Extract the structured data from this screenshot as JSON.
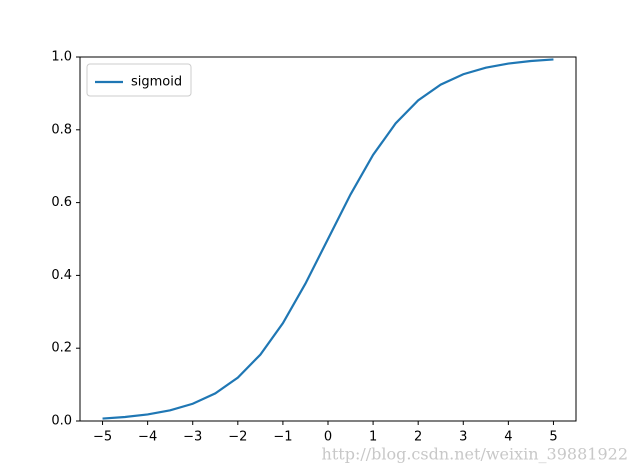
{
  "chart_data": {
    "type": "line",
    "x": [
      -5,
      -4.5,
      -4,
      -3.5,
      -3,
      -2.5,
      -2,
      -1.5,
      -1,
      -0.5,
      0,
      0.5,
      1,
      1.5,
      2,
      2.5,
      3,
      3.5,
      4,
      4.5,
      5
    ],
    "series": [
      {
        "name": "sigmoid",
        "color": "#1f77b4",
        "values": [
          0.0067,
          0.011,
          0.018,
          0.0293,
          0.0474,
          0.0759,
          0.1192,
          0.1824,
          0.2689,
          0.3775,
          0.5,
          0.6225,
          0.7311,
          0.8176,
          0.8808,
          0.9241,
          0.9526,
          0.9707,
          0.982,
          0.989,
          0.9933
        ]
      }
    ],
    "xlim": [
      -5.5,
      5.5
    ],
    "ylim": [
      0,
      1
    ],
    "xticks": [
      {
        "value": -5,
        "label": "−5"
      },
      {
        "value": -4,
        "label": "−4"
      },
      {
        "value": -3,
        "label": "−3"
      },
      {
        "value": -2,
        "label": "−2"
      },
      {
        "value": -1,
        "label": "−1"
      },
      0,
      1,
      2,
      3,
      4,
      5
    ],
    "yticks": [
      {
        "value": 0,
        "label": "0.0"
      },
      0.2,
      0.4,
      0.6,
      0.8,
      {
        "value": 1,
        "label": "1.0"
      }
    ],
    "grid": false,
    "legend": "upper left",
    "watermark": "http://blog.csdn.net/weixin_39881922"
  }
}
